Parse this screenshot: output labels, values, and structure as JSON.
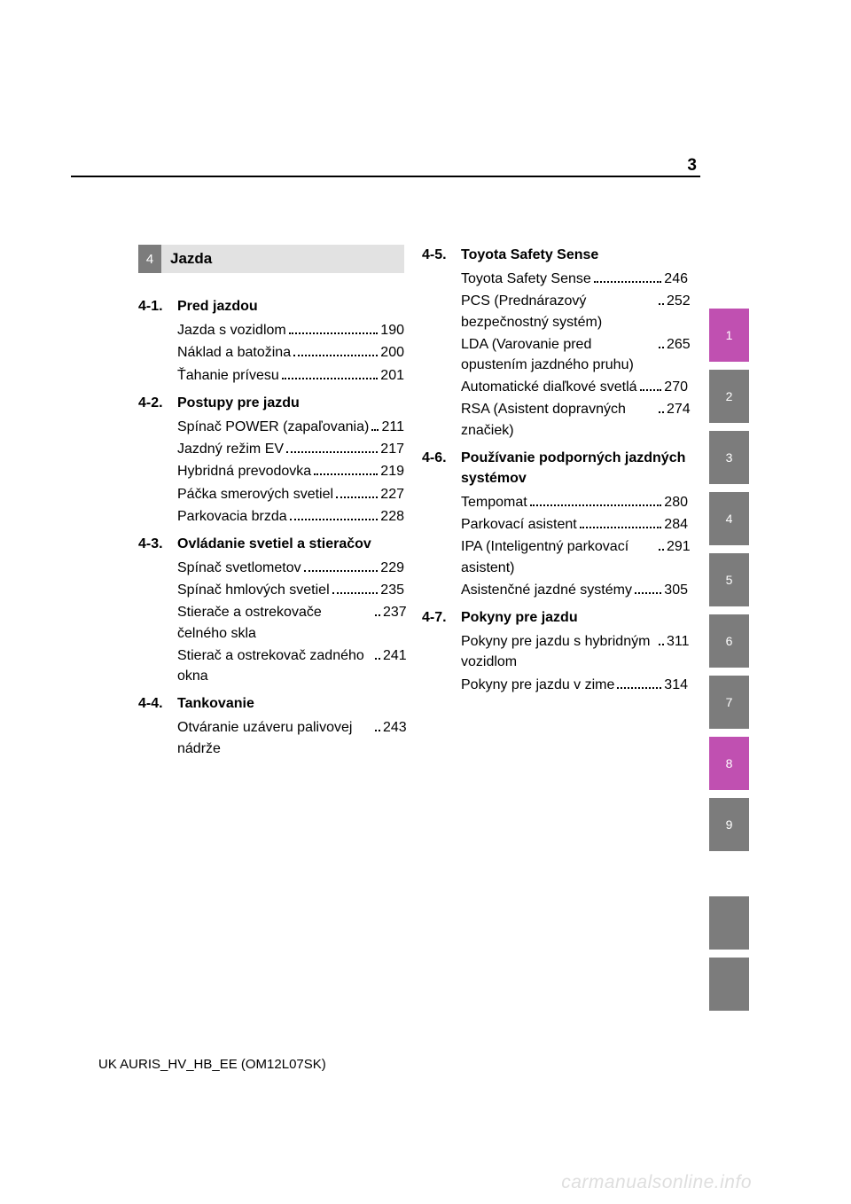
{
  "page_number": "3",
  "chapter": {
    "num": "4",
    "title": "Jazda"
  },
  "sections_left": [
    {
      "num": "4-1.",
      "title": "Pred jazdou",
      "entries": [
        {
          "text": "Jazda s vozidlom",
          "page": "190"
        },
        {
          "text": "Náklad a batožina",
          "page": "200"
        },
        {
          "text": "Ťahanie prívesu",
          "page": "201"
        }
      ]
    },
    {
      "num": "4-2.",
      "title": "Postupy pre jazdu",
      "entries": [
        {
          "text": "Spínač POWER (zapaľovania)",
          "page": "211"
        },
        {
          "text": "Jazdný režim EV",
          "page": "217"
        },
        {
          "text": "Hybridná prevodovka",
          "page": "219"
        },
        {
          "text": "Páčka smerových svetiel",
          "page": "227"
        },
        {
          "text": "Parkovacia brzda",
          "page": "228"
        }
      ]
    },
    {
      "num": "4-3.",
      "title": "Ovládanie svetiel a stieračov",
      "entries": [
        {
          "text": "Spínač svetlometov",
          "page": "229"
        },
        {
          "text": "Spínač hmlových svetiel",
          "page": "235"
        },
        {
          "text": "Stierače a ostrekovače čelného skla",
          "page": "237"
        },
        {
          "text": "Stierač a ostrekovač zadného okna",
          "page": "241"
        }
      ]
    },
    {
      "num": "4-4.",
      "title": "Tankovanie",
      "entries": [
        {
          "text": "Otváranie uzáveru palivovej nádrže",
          "page": "243"
        }
      ]
    }
  ],
  "sections_right": [
    {
      "num": "4-5.",
      "title": "Toyota Safety Sense",
      "entries": [
        {
          "text": "Toyota Safety Sense",
          "page": "246"
        },
        {
          "text": "PCS (Prednárazový bezpečnostný systém)",
          "page": "252"
        },
        {
          "text": "LDA (Varovanie pred opustením jazdného pruhu)",
          "page": "265"
        },
        {
          "text": "Automatické diaľkové svetlá",
          "page": "270"
        },
        {
          "text": "RSA (Asistent dopravných značiek)",
          "page": "274"
        }
      ]
    },
    {
      "num": "4-6.",
      "title": "Používanie podporných jazdných systémov",
      "entries": [
        {
          "text": "Tempomat",
          "page": "280"
        },
        {
          "text": "Parkovací asistent",
          "page": "284"
        },
        {
          "text": "IPA (Inteligentný parkovací asistent)",
          "page": "291"
        },
        {
          "text": "Asistenčné jazdné systémy",
          "page": "305"
        }
      ]
    },
    {
      "num": "4-7.",
      "title": "Pokyny pre jazdu",
      "entries": [
        {
          "text": "Pokyny pre jazdu s hybridným vozidlom",
          "page": "311"
        },
        {
          "text": "Pokyny pre jazdu v zime",
          "page": "314"
        }
      ]
    }
  ],
  "tabs": [
    {
      "label": "1",
      "style": "pink"
    },
    {
      "label": "2",
      "style": "gray"
    },
    {
      "label": "3",
      "style": "gray"
    },
    {
      "label": "4",
      "style": "gray"
    },
    {
      "label": "5",
      "style": "gray"
    },
    {
      "label": "6",
      "style": "gray"
    },
    {
      "label": "7",
      "style": "gray"
    },
    {
      "label": "8",
      "style": "pink"
    },
    {
      "label": "9",
      "style": "gray"
    }
  ],
  "footer": "UK AURIS_HV_HB_EE (OM12L07SK)",
  "watermark": "carmanualsonline.info",
  "colors": {
    "tab_gray": "#7c7c7c",
    "tab_pink": "#c050b1",
    "chapter_title_bg": "#e2e2e2",
    "watermark": "#dedede"
  }
}
